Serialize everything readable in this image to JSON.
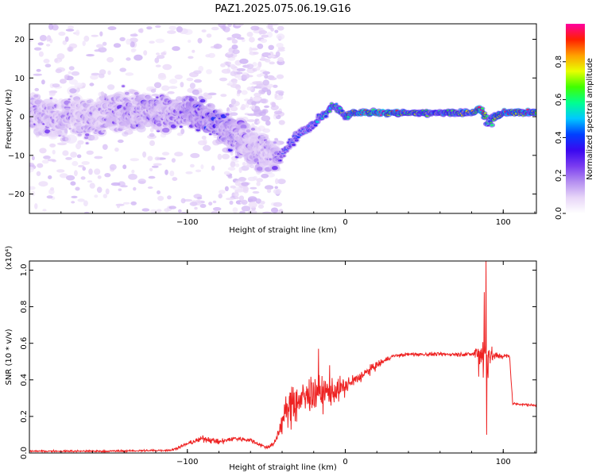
{
  "title": "PAZ1.2025.075.06.19.G16",
  "colors": {
    "signal_line": "#ee2222",
    "colorbar": [
      "#ffffff",
      "#e8d6f8",
      "#b48ef0",
      "#7a3cf0",
      "#3a08f0",
      "#0040ff",
      "#00c8ff",
      "#00ff90",
      "#40ff00",
      "#e8ff00",
      "#ffa000",
      "#ff2000",
      "#ff00a0"
    ]
  },
  "chart_data": [
    {
      "type": "heatmap",
      "xlabel": "Height of straight line (km)",
      "ylabel": "Frequency (Hz)",
      "xlim": [
        -200,
        121
      ],
      "ylim": [
        -25,
        24
      ],
      "xticks": [
        -100,
        0,
        100
      ],
      "yticks": [
        -20,
        -10,
        0,
        10,
        20
      ],
      "colorbar": {
        "label": "Normalized spectral amplitude",
        "range": [
          0.0,
          1.0
        ],
        "ticks": [
          0.0,
          0.2,
          0.4,
          0.6,
          0.8
        ]
      },
      "ridge": [
        {
          "x": -200,
          "y": 0.5,
          "amp": 0.2,
          "spread": 8
        },
        {
          "x": -190,
          "y": 0.0,
          "amp": 0.22,
          "spread": 8
        },
        {
          "x": -180,
          "y": -0.5,
          "amp": 0.22,
          "spread": 8
        },
        {
          "x": -170,
          "y": 0.5,
          "amp": 0.2,
          "spread": 8
        },
        {
          "x": -160,
          "y": 0.0,
          "amp": 0.2,
          "spread": 8
        },
        {
          "x": -150,
          "y": 0.5,
          "amp": 0.22,
          "spread": 8
        },
        {
          "x": -140,
          "y": 1.0,
          "amp": 0.24,
          "spread": 8
        },
        {
          "x": -130,
          "y": 1.0,
          "amp": 0.26,
          "spread": 7
        },
        {
          "x": -120,
          "y": 1.0,
          "amp": 0.26,
          "spread": 7
        },
        {
          "x": -110,
          "y": 1.0,
          "amp": 0.24,
          "spread": 7
        },
        {
          "x": -100,
          "y": 2.0,
          "amp": 0.3,
          "spread": 6
        },
        {
          "x": -90,
          "y": 0.0,
          "amp": 0.34,
          "spread": 6
        },
        {
          "x": -80,
          "y": -2.0,
          "amp": 0.32,
          "spread": 6
        },
        {
          "x": -70,
          "y": -5.0,
          "amp": 0.28,
          "spread": 7
        },
        {
          "x": -60,
          "y": -8.0,
          "amp": 0.22,
          "spread": 8
        },
        {
          "x": -45,
          "y": -10.0,
          "amp": 0.22,
          "spread": 6
        },
        {
          "x": -42,
          "y": -10.5,
          "amp": 0.32,
          "spread": 2
        },
        {
          "x": -35,
          "y": -7.0,
          "amp": 0.36,
          "spread": 2
        },
        {
          "x": -28,
          "y": -4.0,
          "amp": 0.4,
          "spread": 2
        },
        {
          "x": -20,
          "y": -2.0,
          "amp": 0.45,
          "spread": 2
        },
        {
          "x": -12,
          "y": 1.0,
          "amp": 0.55,
          "spread": 1.5
        },
        {
          "x": -8,
          "y": 3.0,
          "amp": 0.58,
          "spread": 1.5
        },
        {
          "x": -3,
          "y": 1.5,
          "amp": 0.6,
          "spread": 1.5
        },
        {
          "x": 0,
          "y": 0.0,
          "amp": 0.62,
          "spread": 1.2
        },
        {
          "x": 5,
          "y": 1.0,
          "amp": 0.7,
          "spread": 1.2
        },
        {
          "x": 12,
          "y": 1.0,
          "amp": 0.95,
          "spread": 1.0
        },
        {
          "x": 25,
          "y": 1.0,
          "amp": 0.9,
          "spread": 1.0
        },
        {
          "x": 40,
          "y": 1.0,
          "amp": 0.68,
          "spread": 1.0
        },
        {
          "x": 60,
          "y": 1.0,
          "amp": 0.66,
          "spread": 1.0
        },
        {
          "x": 80,
          "y": 1.0,
          "amp": 0.72,
          "spread": 1.0
        },
        {
          "x": 86,
          "y": 2.0,
          "amp": 0.95,
          "spread": 1.5
        },
        {
          "x": 90,
          "y": -1.0,
          "amp": 0.5,
          "spread": 3
        },
        {
          "x": 100,
          "y": 1.0,
          "amp": 0.82,
          "spread": 1.0
        },
        {
          "x": 110,
          "y": 1.0,
          "amp": 0.8,
          "spread": 1.0
        },
        {
          "x": 121,
          "y": 1.0,
          "amp": 0.78,
          "spread": 1.0
        }
      ]
    },
    {
      "type": "line",
      "xlabel": "Height of straight line (km)",
      "ylabel": "SNR (10 * v/v)",
      "multiplier_label": "(x10⁴)",
      "xlim": [
        -200,
        121
      ],
      "ylim": [
        0.0,
        1.05
      ],
      "xticks": [
        -100,
        0,
        100
      ],
      "yticks": [
        0.0,
        0.2,
        0.4,
        0.6,
        0.8,
        1.0
      ],
      "ytick_labels": [
        "0.0",
        "0.2",
        "0.4",
        "0.6",
        "0.8",
        "1.0"
      ],
      "envelope": {
        "x": [
          -200,
          -150,
          -110,
          -100,
          -90,
          -80,
          -70,
          -60,
          -50,
          -45,
          -42,
          -38,
          -30,
          -20,
          -10,
          0,
          10,
          20,
          30,
          40,
          60,
          80,
          85,
          88,
          90,
          92,
          95,
          100,
          104,
          106,
          121
        ],
        "y": [
          0.01,
          0.01,
          0.015,
          0.05,
          0.08,
          0.06,
          0.08,
          0.07,
          0.03,
          0.05,
          0.12,
          0.22,
          0.28,
          0.33,
          0.33,
          0.36,
          0.42,
          0.48,
          0.53,
          0.54,
          0.54,
          0.54,
          0.54,
          0.55,
          0.55,
          0.53,
          0.53,
          0.53,
          0.53,
          0.27,
          0.26
        ]
      },
      "noise_amplitude": {
        "x": [
          -200,
          -110,
          -90,
          -60,
          -45,
          -35,
          -20,
          -10,
          0,
          10,
          20,
          30,
          80,
          84,
          89,
          92,
          100,
          104,
          106,
          121
        ],
        "y": [
          0.005,
          0.008,
          0.03,
          0.02,
          0.02,
          0.2,
          0.2,
          0.15,
          0.1,
          0.06,
          0.04,
          0.015,
          0.02,
          0.15,
          0.42,
          0.08,
          0.02,
          0.02,
          0.01,
          0.01
        ]
      },
      "peaks": [
        {
          "x": -17,
          "y": 0.57
        },
        {
          "x": -10,
          "y": 0.48
        },
        {
          "x": -33,
          "y": 0.36
        },
        {
          "x": 88,
          "y": 0.88
        },
        {
          "x": 89,
          "y": 1.05
        },
        {
          "x": 89.5,
          "y": 0.1
        }
      ]
    }
  ]
}
